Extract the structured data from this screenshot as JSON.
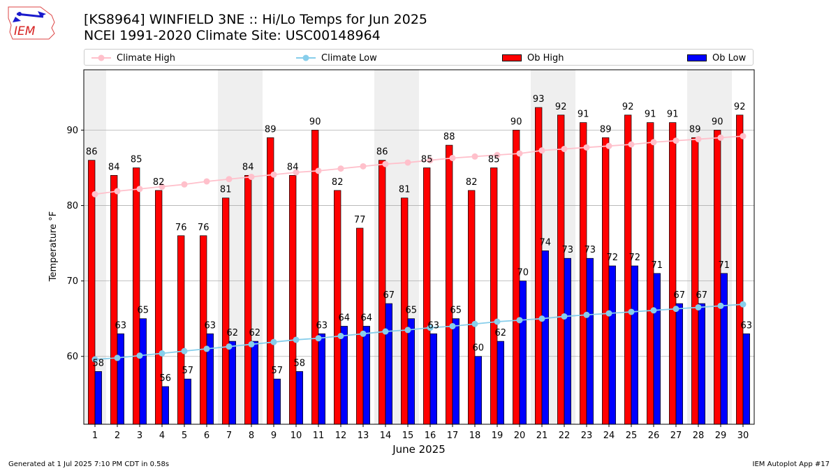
{
  "header": {
    "title_line1": "[KS8964] WINFIELD 3NE :: Hi/Lo Temps for Jun 2025",
    "title_line2": "NCEI 1991-2020 Climate Site: USC00148964",
    "logo_text": "IEM"
  },
  "footer": {
    "left": "Generated at 1 Jul 2025 7:10 PM CDT in 0.58s",
    "right": "IEM Autoplot App #17"
  },
  "colors": {
    "ob_high": "#ff0000",
    "ob_low": "#0000ff",
    "climate_high": "#ffc0cb",
    "climate_low": "#87ceeb",
    "weekend_band": "#efefef"
  },
  "chart_data": {
    "type": "bar",
    "xlabel": "June 2025",
    "ylabel": "Temperature °F",
    "ylim": [
      51,
      98
    ],
    "yticks": [
      60,
      70,
      80,
      90
    ],
    "grid": true,
    "legend_placement": "top",
    "categories": [
      "1",
      "2",
      "3",
      "4",
      "5",
      "6",
      "7",
      "8",
      "9",
      "10",
      "11",
      "12",
      "13",
      "14",
      "15",
      "16",
      "17",
      "18",
      "19",
      "20",
      "21",
      "22",
      "23",
      "24",
      "25",
      "26",
      "27",
      "28",
      "29",
      "30"
    ],
    "shaded_days": [
      1,
      7,
      8,
      14,
      15,
      21,
      22,
      28,
      29
    ],
    "series": [
      {
        "name": "Ob High",
        "kind": "bar",
        "values": [
          86,
          84,
          85,
          82,
          76,
          76,
          81,
          84,
          89,
          84,
          90,
          82,
          77,
          86,
          81,
          85,
          88,
          82,
          85,
          90,
          93,
          92,
          91,
          89,
          92,
          91,
          91,
          89,
          90,
          92
        ]
      },
      {
        "name": "Ob Low",
        "kind": "bar",
        "values": [
          58,
          63,
          65,
          56,
          57,
          63,
          62,
          62,
          57,
          58,
          63,
          64,
          64,
          67,
          65,
          63,
          65,
          60,
          62,
          70,
          74,
          73,
          73,
          72,
          72,
          71,
          67,
          67,
          71,
          63
        ]
      },
      {
        "name": "Climate High",
        "kind": "line",
        "values": [
          81.5,
          81.9,
          82.2,
          82.5,
          82.8,
          83.2,
          83.5,
          83.8,
          84.1,
          84.4,
          84.6,
          84.9,
          85.2,
          85.5,
          85.7,
          86.0,
          86.3,
          86.5,
          86.7,
          86.9,
          87.3,
          87.5,
          87.7,
          87.9,
          88.1,
          88.4,
          88.6,
          88.8,
          89.0,
          89.2
        ]
      },
      {
        "name": "Climate Low",
        "kind": "line",
        "values": [
          59.6,
          59.8,
          60.1,
          60.4,
          60.7,
          61.0,
          61.3,
          61.6,
          61.9,
          62.2,
          62.4,
          62.7,
          63.0,
          63.3,
          63.5,
          63.8,
          64.0,
          64.3,
          64.6,
          64.8,
          65.0,
          65.3,
          65.5,
          65.7,
          65.9,
          66.1,
          66.3,
          66.5,
          66.7,
          66.9
        ]
      }
    ]
  }
}
